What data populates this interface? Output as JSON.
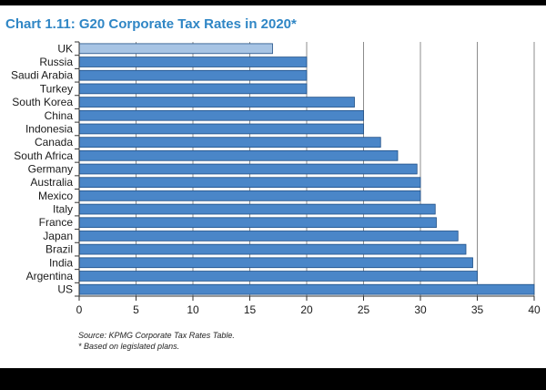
{
  "title": "Chart 1.11: G20 Corporate Tax Rates in 2020*",
  "source_note": "Source: KPMG Corporate Tax Rates Table.",
  "footnote": "* Based on legislated plans.",
  "colors": {
    "title": "#2f86c5",
    "bar": "#4a86c8",
    "bar_highlight": "#a7c4e4",
    "bar_edge": "#1f4f86",
    "grid": "#8c8c8c"
  },
  "chart_data": {
    "type": "bar",
    "orientation": "horizontal",
    "title": "Chart 1.11: G20 Corporate Tax Rates in 2020*",
    "xlabel": "",
    "ylabel": "",
    "xlim": [
      0,
      40
    ],
    "xticks": [
      0,
      5,
      10,
      15,
      20,
      25,
      30,
      35,
      40
    ],
    "grid": true,
    "categories": [
      "UK",
      "Russia",
      "Saudi Arabia",
      "Turkey",
      "South Korea",
      "China",
      "Indonesia",
      "Canada",
      "South Africa",
      "Germany",
      "Australia",
      "Mexico",
      "Italy",
      "France",
      "Japan",
      "Brazil",
      "India",
      "Argentina",
      "US"
    ],
    "values": [
      17,
      20,
      20,
      20,
      24.2,
      25,
      25,
      26.5,
      28,
      29.7,
      30,
      30,
      31.3,
      31.4,
      33.3,
      34,
      34.6,
      35,
      40
    ],
    "highlight": "UK"
  }
}
